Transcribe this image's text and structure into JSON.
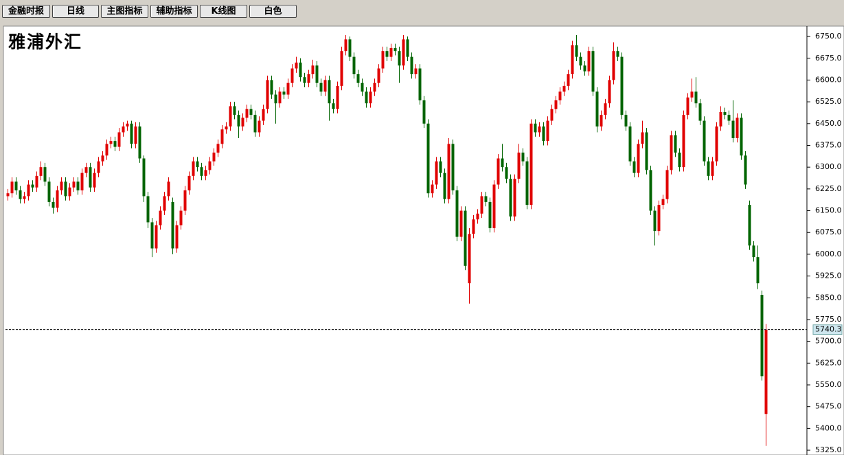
{
  "toolbar": [
    "金融时报",
    "日线",
    "主图指标",
    "辅助指标",
    "K线图",
    "白色"
  ],
  "chart_data": {
    "type": "candlestick",
    "title": "雅浦外汇",
    "up_color": "#e00000",
    "down_color": "#006400",
    "ylim": [
      5318,
      6781
    ],
    "yticks": [
      {
        "value": 6750,
        "label": "6750.0"
      },
      {
        "value": 6675,
        "label": "6675.0"
      },
      {
        "value": 6600,
        "label": "6600.0"
      },
      {
        "value": 6525,
        "label": "6525.0"
      },
      {
        "value": 6450,
        "label": "6450.0"
      },
      {
        "value": 6375,
        "label": "6375.0"
      },
      {
        "value": 6300,
        "label": "6300.0"
      },
      {
        "value": 6225,
        "label": "6225.0"
      },
      {
        "value": 6150,
        "label": "6150.0"
      },
      {
        "value": 6075,
        "label": "6075.0"
      },
      {
        "value": 6000,
        "label": "6000.0"
      },
      {
        "value": 5925,
        "label": "5925.0"
      },
      {
        "value": 5850,
        "label": "5850.0"
      },
      {
        "value": 5775,
        "label": "5775.0"
      },
      {
        "value": 5700,
        "label": "5700.0"
      },
      {
        "value": 5625,
        "label": "5625.0"
      },
      {
        "value": 5550,
        "label": "5550.0"
      },
      {
        "value": 5475,
        "label": "5475.0"
      },
      {
        "value": 5400,
        "label": "5400.0"
      },
      {
        "value": 5325,
        "label": "5325.0"
      }
    ],
    "last_price": 5740.3,
    "candles": [
      [
        6200,
        6225,
        6185,
        6210
      ],
      [
        6210,
        6265,
        6195,
        6250
      ],
      [
        6250,
        6265,
        6205,
        6220
      ],
      [
        6220,
        6235,
        6175,
        6190
      ],
      [
        6190,
        6215,
        6175,
        6200
      ],
      [
        6200,
        6255,
        6185,
        6240
      ],
      [
        6240,
        6255,
        6215,
        6230
      ],
      [
        6230,
        6285,
        6215,
        6270
      ],
      [
        6270,
        6320,
        6255,
        6300
      ],
      [
        6300,
        6315,
        6235,
        6250
      ],
      [
        6250,
        6265,
        6165,
        6180
      ],
      [
        6180,
        6195,
        6140,
        6160
      ],
      [
        6160,
        6235,
        6145,
        6220
      ],
      [
        6220,
        6265,
        6205,
        6250
      ],
      [
        6250,
        6265,
        6185,
        6200
      ],
      [
        6200,
        6245,
        6185,
        6230
      ],
      [
        6230,
        6265,
        6215,
        6250
      ],
      [
        6250,
        6265,
        6205,
        6220
      ],
      [
        6220,
        6295,
        6205,
        6280
      ],
      [
        6280,
        6315,
        6265,
        6300
      ],
      [
        6300,
        6315,
        6215,
        6230
      ],
      [
        6230,
        6295,
        6215,
        6280
      ],
      [
        6280,
        6335,
        6265,
        6320
      ],
      [
        6320,
        6355,
        6305,
        6340
      ],
      [
        6340,
        6395,
        6325,
        6380
      ],
      [
        6380,
        6405,
        6365,
        6390
      ],
      [
        6390,
        6405,
        6355,
        6370
      ],
      [
        6370,
        6435,
        6355,
        6420
      ],
      [
        6420,
        6455,
        6405,
        6440
      ],
      [
        6440,
        6460,
        6425,
        6450
      ],
      [
        6450,
        6460,
        6365,
        6380
      ],
      [
        6380,
        6455,
        6365,
        6440
      ],
      [
        6440,
        6455,
        6315,
        6330
      ],
      [
        6330,
        6340,
        6180,
        6200
      ],
      [
        6200,
        6215,
        6090,
        6110
      ],
      [
        6110,
        6125,
        5990,
        6020
      ],
      [
        6020,
        6115,
        6005,
        6100
      ],
      [
        6100,
        6165,
        6085,
        6150
      ],
      [
        6150,
        6215,
        6135,
        6200
      ],
      [
        6200,
        6265,
        6185,
        6250
      ],
      [
        6180,
        6195,
        6000,
        6020
      ],
      [
        6020,
        6115,
        6005,
        6100
      ],
      [
        6100,
        6165,
        6085,
        6150
      ],
      [
        6150,
        6235,
        6135,
        6220
      ],
      [
        6220,
        6285,
        6205,
        6270
      ],
      [
        6270,
        6335,
        6255,
        6320
      ],
      [
        6320,
        6335,
        6285,
        6300
      ],
      [
        6300,
        6315,
        6255,
        6270
      ],
      [
        6270,
        6305,
        6255,
        6290
      ],
      [
        6290,
        6335,
        6275,
        6320
      ],
      [
        6320,
        6365,
        6305,
        6350
      ],
      [
        6350,
        6395,
        6335,
        6380
      ],
      [
        6380,
        6445,
        6365,
        6430
      ],
      [
        6430,
        6455,
        6415,
        6440
      ],
      [
        6440,
        6525,
        6425,
        6510
      ],
      [
        6510,
        6525,
        6465,
        6480
      ],
      [
        6480,
        6495,
        6400,
        6440
      ],
      [
        6440,
        6485,
        6425,
        6470
      ],
      [
        6470,
        6515,
        6455,
        6500
      ],
      [
        6500,
        6515,
        6465,
        6480
      ],
      [
        6480,
        6495,
        6405,
        6420
      ],
      [
        6420,
        6475,
        6405,
        6460
      ],
      [
        6460,
        6515,
        6445,
        6500
      ],
      [
        6500,
        6615,
        6485,
        6600
      ],
      [
        6600,
        6615,
        6535,
        6550
      ],
      [
        6550,
        6565,
        6450,
        6520
      ],
      [
        6520,
        6575,
        6505,
        6560
      ],
      [
        6560,
        6575,
        6535,
        6550
      ],
      [
        6550,
        6605,
        6535,
        6590
      ],
      [
        6590,
        6655,
        6575,
        6640
      ],
      [
        6640,
        6680,
        6625,
        6660
      ],
      [
        6660,
        6675,
        6595,
        6610
      ],
      [
        6610,
        6625,
        6575,
        6590
      ],
      [
        6590,
        6635,
        6575,
        6620
      ],
      [
        6620,
        6670,
        6605,
        6650
      ],
      [
        6650,
        6665,
        6575,
        6590
      ],
      [
        6590,
        6605,
        6545,
        6560
      ],
      [
        6560,
        6615,
        6545,
        6600
      ],
      [
        6600,
        6615,
        6460,
        6520
      ],
      [
        6520,
        6535,
        6485,
        6500
      ],
      [
        6500,
        6595,
        6485,
        6580
      ],
      [
        6580,
        6715,
        6565,
        6700
      ],
      [
        6700,
        6755,
        6685,
        6740
      ],
      [
        6740,
        6750,
        6665,
        6680
      ],
      [
        6680,
        6695,
        6605,
        6620
      ],
      [
        6620,
        6635,
        6575,
        6590
      ],
      [
        6590,
        6605,
        6545,
        6560
      ],
      [
        6560,
        6575,
        6505,
        6520
      ],
      [
        6520,
        6575,
        6505,
        6560
      ],
      [
        6560,
        6605,
        6545,
        6590
      ],
      [
        6590,
        6655,
        6575,
        6640
      ],
      [
        6640,
        6715,
        6625,
        6700
      ],
      [
        6700,
        6715,
        6665,
        6680
      ],
      [
        6680,
        6725,
        6665,
        6710
      ],
      [
        6710,
        6725,
        6685,
        6700
      ],
      [
        6700,
        6715,
        6590,
        6650
      ],
      [
        6650,
        6755,
        6635,
        6740
      ],
      [
        6740,
        6750,
        6665,
        6680
      ],
      [
        6680,
        6695,
        6605,
        6620
      ],
      [
        6620,
        6655,
        6605,
        6640
      ],
      [
        6640,
        6655,
        6515,
        6530
      ],
      [
        6530,
        6545,
        6435,
        6450
      ],
      [
        6450,
        6465,
        6195,
        6210
      ],
      [
        6210,
        6255,
        6195,
        6240
      ],
      [
        6240,
        6335,
        6225,
        6320
      ],
      [
        6320,
        6335,
        6265,
        6280
      ],
      [
        6280,
        6295,
        6175,
        6190
      ],
      [
        6190,
        6400,
        6175,
        6380
      ],
      [
        6380,
        6395,
        6205,
        6220
      ],
      [
        6220,
        6235,
        6045,
        6060
      ],
      [
        6060,
        6165,
        6045,
        6150
      ],
      [
        6150,
        6165,
        5945,
        5960
      ],
      [
        5900,
        6090,
        5830,
        6070
      ],
      [
        6070,
        6135,
        6055,
        6120
      ],
      [
        6120,
        6155,
        6105,
        6140
      ],
      [
        6140,
        6215,
        6125,
        6200
      ],
      [
        6200,
        6215,
        6165,
        6180
      ],
      [
        6180,
        6195,
        6075,
        6090
      ],
      [
        6090,
        6255,
        6075,
        6240
      ],
      [
        6240,
        6345,
        6225,
        6330
      ],
      [
        6330,
        6380,
        6285,
        6300
      ],
      [
        6300,
        6315,
        6245,
        6260
      ],
      [
        6260,
        6275,
        6115,
        6130
      ],
      [
        6130,
        6275,
        6115,
        6260
      ],
      [
        6260,
        6380,
        6245,
        6350
      ],
      [
        6350,
        6365,
        6305,
        6320
      ],
      [
        6320,
        6335,
        6155,
        6170
      ],
      [
        6170,
        6465,
        6155,
        6450
      ],
      [
        6450,
        6465,
        6405,
        6420
      ],
      [
        6420,
        6455,
        6405,
        6440
      ],
      [
        6440,
        6455,
        6375,
        6390
      ],
      [
        6390,
        6475,
        6375,
        6460
      ],
      [
        6460,
        6515,
        6445,
        6500
      ],
      [
        6500,
        6545,
        6485,
        6530
      ],
      [
        6530,
        6575,
        6515,
        6560
      ],
      [
        6560,
        6595,
        6545,
        6580
      ],
      [
        6580,
        6635,
        6565,
        6620
      ],
      [
        6620,
        6735,
        6605,
        6720
      ],
      [
        6720,
        6755,
        6665,
        6680
      ],
      [
        6680,
        6695,
        6635,
        6650
      ],
      [
        6650,
        6665,
        6615,
        6630
      ],
      [
        6630,
        6715,
        6615,
        6700
      ],
      [
        6700,
        6715,
        6545,
        6560
      ],
      [
        6560,
        6575,
        6420,
        6440
      ],
      [
        6440,
        6495,
        6425,
        6480
      ],
      [
        6480,
        6535,
        6465,
        6520
      ],
      [
        6520,
        6615,
        6505,
        6600
      ],
      [
        6600,
        6730,
        6585,
        6700
      ],
      [
        6700,
        6715,
        6665,
        6680
      ],
      [
        6680,
        6695,
        6465,
        6480
      ],
      [
        6480,
        6495,
        6425,
        6440
      ],
      [
        6440,
        6455,
        6305,
        6320
      ],
      [
        6320,
        6335,
        6265,
        6280
      ],
      [
        6280,
        6395,
        6265,
        6380
      ],
      [
        6380,
        6460,
        6365,
        6420
      ],
      [
        6420,
        6435,
        6275,
        6290
      ],
      [
        6290,
        6305,
        6135,
        6150
      ],
      [
        6150,
        6165,
        6030,
        6080
      ],
      [
        6080,
        6185,
        6065,
        6170
      ],
      [
        6170,
        6205,
        6155,
        6190
      ],
      [
        6190,
        6305,
        6175,
        6290
      ],
      [
        6290,
        6425,
        6275,
        6410
      ],
      [
        6410,
        6425,
        6335,
        6350
      ],
      [
        6350,
        6365,
        6285,
        6300
      ],
      [
        6300,
        6495,
        6285,
        6480
      ],
      [
        6480,
        6555,
        6465,
        6540
      ],
      [
        6540,
        6605,
        6525,
        6560
      ],
      [
        6560,
        6610,
        6505,
        6520
      ],
      [
        6520,
        6535,
        6445,
        6460
      ],
      [
        6460,
        6475,
        6305,
        6320
      ],
      [
        6320,
        6335,
        6255,
        6270
      ],
      [
        6270,
        6335,
        6255,
        6320
      ],
      [
        6320,
        6455,
        6305,
        6440
      ],
      [
        6440,
        6510,
        6425,
        6490
      ],
      [
        6490,
        6505,
        6465,
        6480
      ],
      [
        6480,
        6495,
        6445,
        6460
      ],
      [
        6460,
        6530,
        6385,
        6400
      ],
      [
        6400,
        6485,
        6385,
        6470
      ],
      [
        6470,
        6485,
        6325,
        6340
      ],
      [
        6340,
        6355,
        6225,
        6240
      ],
      [
        6170,
        6185,
        6015,
        6030
      ],
      [
        6030,
        6045,
        5975,
        5990
      ],
      [
        5990,
        6030,
        5880,
        5900
      ],
      [
        5860,
        5875,
        5565,
        5580
      ],
      [
        5450,
        5760,
        5340,
        5740.3
      ]
    ]
  }
}
